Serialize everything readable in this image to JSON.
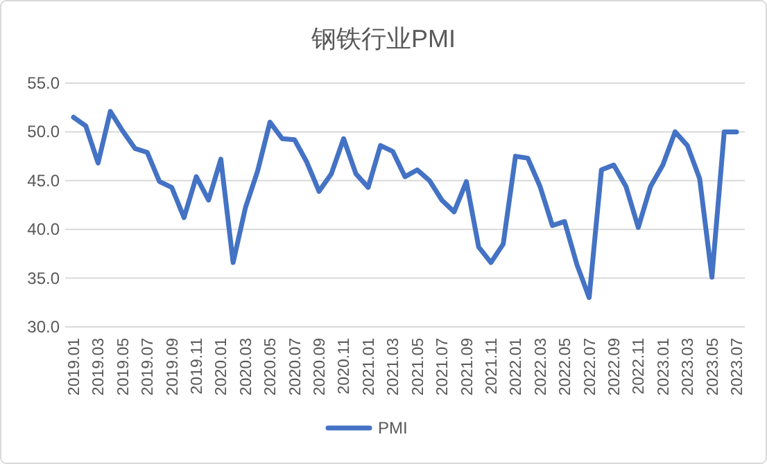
{
  "chart_data": {
    "type": "line",
    "title": "钢铁行业PMI",
    "categories": [
      "2019.01",
      null,
      "2019.03",
      null,
      "2019.05",
      null,
      "2019.07",
      null,
      "2019.09",
      null,
      "2019.11",
      null,
      "2020.01",
      null,
      "2020.03",
      null,
      "2020.05",
      null,
      "2020.07",
      null,
      "2020.09",
      null,
      "2020.11",
      null,
      "2021.01",
      null,
      "2021.03",
      null,
      "2021.05",
      null,
      "2021.07",
      null,
      "2021.09",
      null,
      "2021.11",
      null,
      "2022.01",
      null,
      "2022.03",
      null,
      "2022.05",
      null,
      "2022.07",
      null,
      "2022.09",
      null,
      "2022.11",
      null,
      "2023.01",
      null,
      "2023.03",
      null,
      "2023.05",
      null,
      "2023.07"
    ],
    "series": [
      {
        "name": "PMI",
        "color": "#4472c4",
        "values": [
          51.5,
          50.6,
          46.8,
          52.1,
          50.1,
          48.3,
          47.9,
          44.9,
          44.3,
          41.2,
          45.4,
          43.0,
          47.2,
          36.6,
          42.2,
          46.0,
          51.0,
          49.3,
          49.2,
          46.9,
          43.9,
          45.7,
          49.3,
          45.7,
          44.3,
          48.6,
          48.0,
          45.4,
          46.1,
          45.0,
          43.0,
          41.8,
          44.9,
          38.2,
          36.6,
          38.5,
          47.5,
          47.3,
          44.4,
          40.4,
          40.8,
          36.4,
          33.0,
          46.1,
          46.6,
          44.4,
          40.2,
          44.4,
          46.6,
          50.0,
          48.6,
          45.2,
          35.1,
          50.0,
          50.0
        ]
      }
    ],
    "ylim": [
      30,
      55
    ],
    "yticks": [
      {
        "value": 30,
        "label": "30.0"
      },
      {
        "value": 35,
        "label": "35.0"
      },
      {
        "value": 40,
        "label": "40.0"
      },
      {
        "value": 45,
        "label": "45.0"
      },
      {
        "value": 50,
        "label": "50.0"
      },
      {
        "value": 55,
        "label": "55.0"
      }
    ],
    "grid": "y",
    "legend": "bottom"
  }
}
